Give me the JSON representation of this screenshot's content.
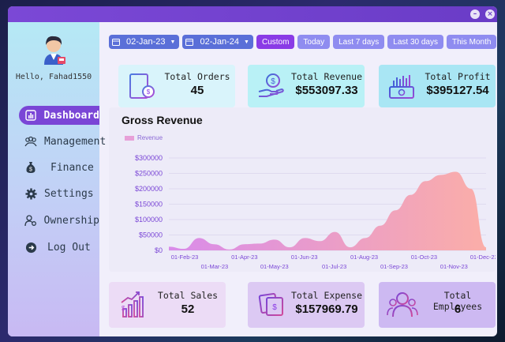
{
  "window": {
    "minimize_glyph": "–",
    "close_glyph": "×"
  },
  "sidebar": {
    "greeting": "Hello, Fahad1550",
    "items": [
      {
        "label": "Dashboard",
        "icon": "bar-chart-icon"
      },
      {
        "label": "Management",
        "icon": "users-icon"
      },
      {
        "label": "Finance",
        "icon": "money-bag-icon"
      },
      {
        "label": "Settings",
        "icon": "gear-icon"
      },
      {
        "label": "Ownership",
        "icon": "user-settings-icon"
      },
      {
        "label": "Log Out",
        "icon": "logout-icon"
      }
    ]
  },
  "filters": {
    "start_date": "02-Jan-23",
    "end_date": "02-Jan-24",
    "ranges": [
      "Custom",
      "Today",
      "Last 7 days",
      "Last 30 days",
      "This Month"
    ],
    "active_range": "Custom"
  },
  "summary": {
    "total_orders": {
      "label": "Total Orders",
      "value": "45"
    },
    "total_revenue": {
      "label": "Total Revenue",
      "value": "$553097.33"
    },
    "total_profit": {
      "label": "Total Profit",
      "value": "$395127.54"
    },
    "total_sales": {
      "label": "Total Sales",
      "value": "52"
    },
    "total_expense": {
      "label": "Total Expense",
      "value": "$157969.79"
    },
    "total_employees": {
      "label": "Total Employees",
      "value": "6"
    }
  },
  "colors": {
    "accent": "#7a46d6",
    "date_button": "#5a6fd8",
    "range_button": "#8f8cf0",
    "range_active": "#8a3be6",
    "card_cyan": "#d7f6fb",
    "card_lilac": "#e5d9f7",
    "card_purple": "#d5c5f2",
    "area_start": "#d98bea",
    "area_end": "#fbaea8"
  },
  "chart_data": {
    "type": "area",
    "title": "Gross Revenue",
    "series": [
      {
        "name": "Revenue",
        "x": [
          "01-Feb-23",
          "15-Feb-23",
          "01-Mar-23",
          "15-Mar-23",
          "01-Apr-23",
          "15-Apr-23",
          "01-May-23",
          "15-May-23",
          "01-Jun-23",
          "15-Jun-23",
          "01-Jul-23",
          "15-Jul-23",
          "01-Aug-23",
          "15-Aug-23",
          "01-Sep-23",
          "15-Sep-23",
          "01-Oct-23",
          "15-Oct-23",
          "01-Nov-23",
          "15-Nov-23",
          "01-Dec-23",
          "15-Dec-23"
        ],
        "values": [
          12000,
          5000,
          40000,
          20000,
          3000,
          20000,
          22000,
          35000,
          10000,
          40000,
          30000,
          60000,
          10000,
          40000,
          80000,
          130000,
          180000,
          225000,
          245000,
          255000,
          200000,
          10000
        ]
      }
    ],
    "x_tick_labels_top": [
      "01-Feb-23",
      "01-Apr-23",
      "01-Jun-23",
      "01-Aug-23",
      "01-Oct-23",
      "01-Dec-23"
    ],
    "x_tick_labels_bottom": [
      "01-Mar-23",
      "01-May-23",
      "01-Jul-23",
      "01-Sep-23",
      "01-Nov-23"
    ],
    "y_ticks": [
      0,
      50000,
      100000,
      150000,
      200000,
      250000,
      300000
    ],
    "y_tick_labels": [
      "$0",
      "$50000",
      "$100000",
      "$150000",
      "$200000",
      "$250000",
      "$300000"
    ],
    "ylim": [
      0,
      300000
    ],
    "grid": true,
    "legend": "top-left"
  }
}
